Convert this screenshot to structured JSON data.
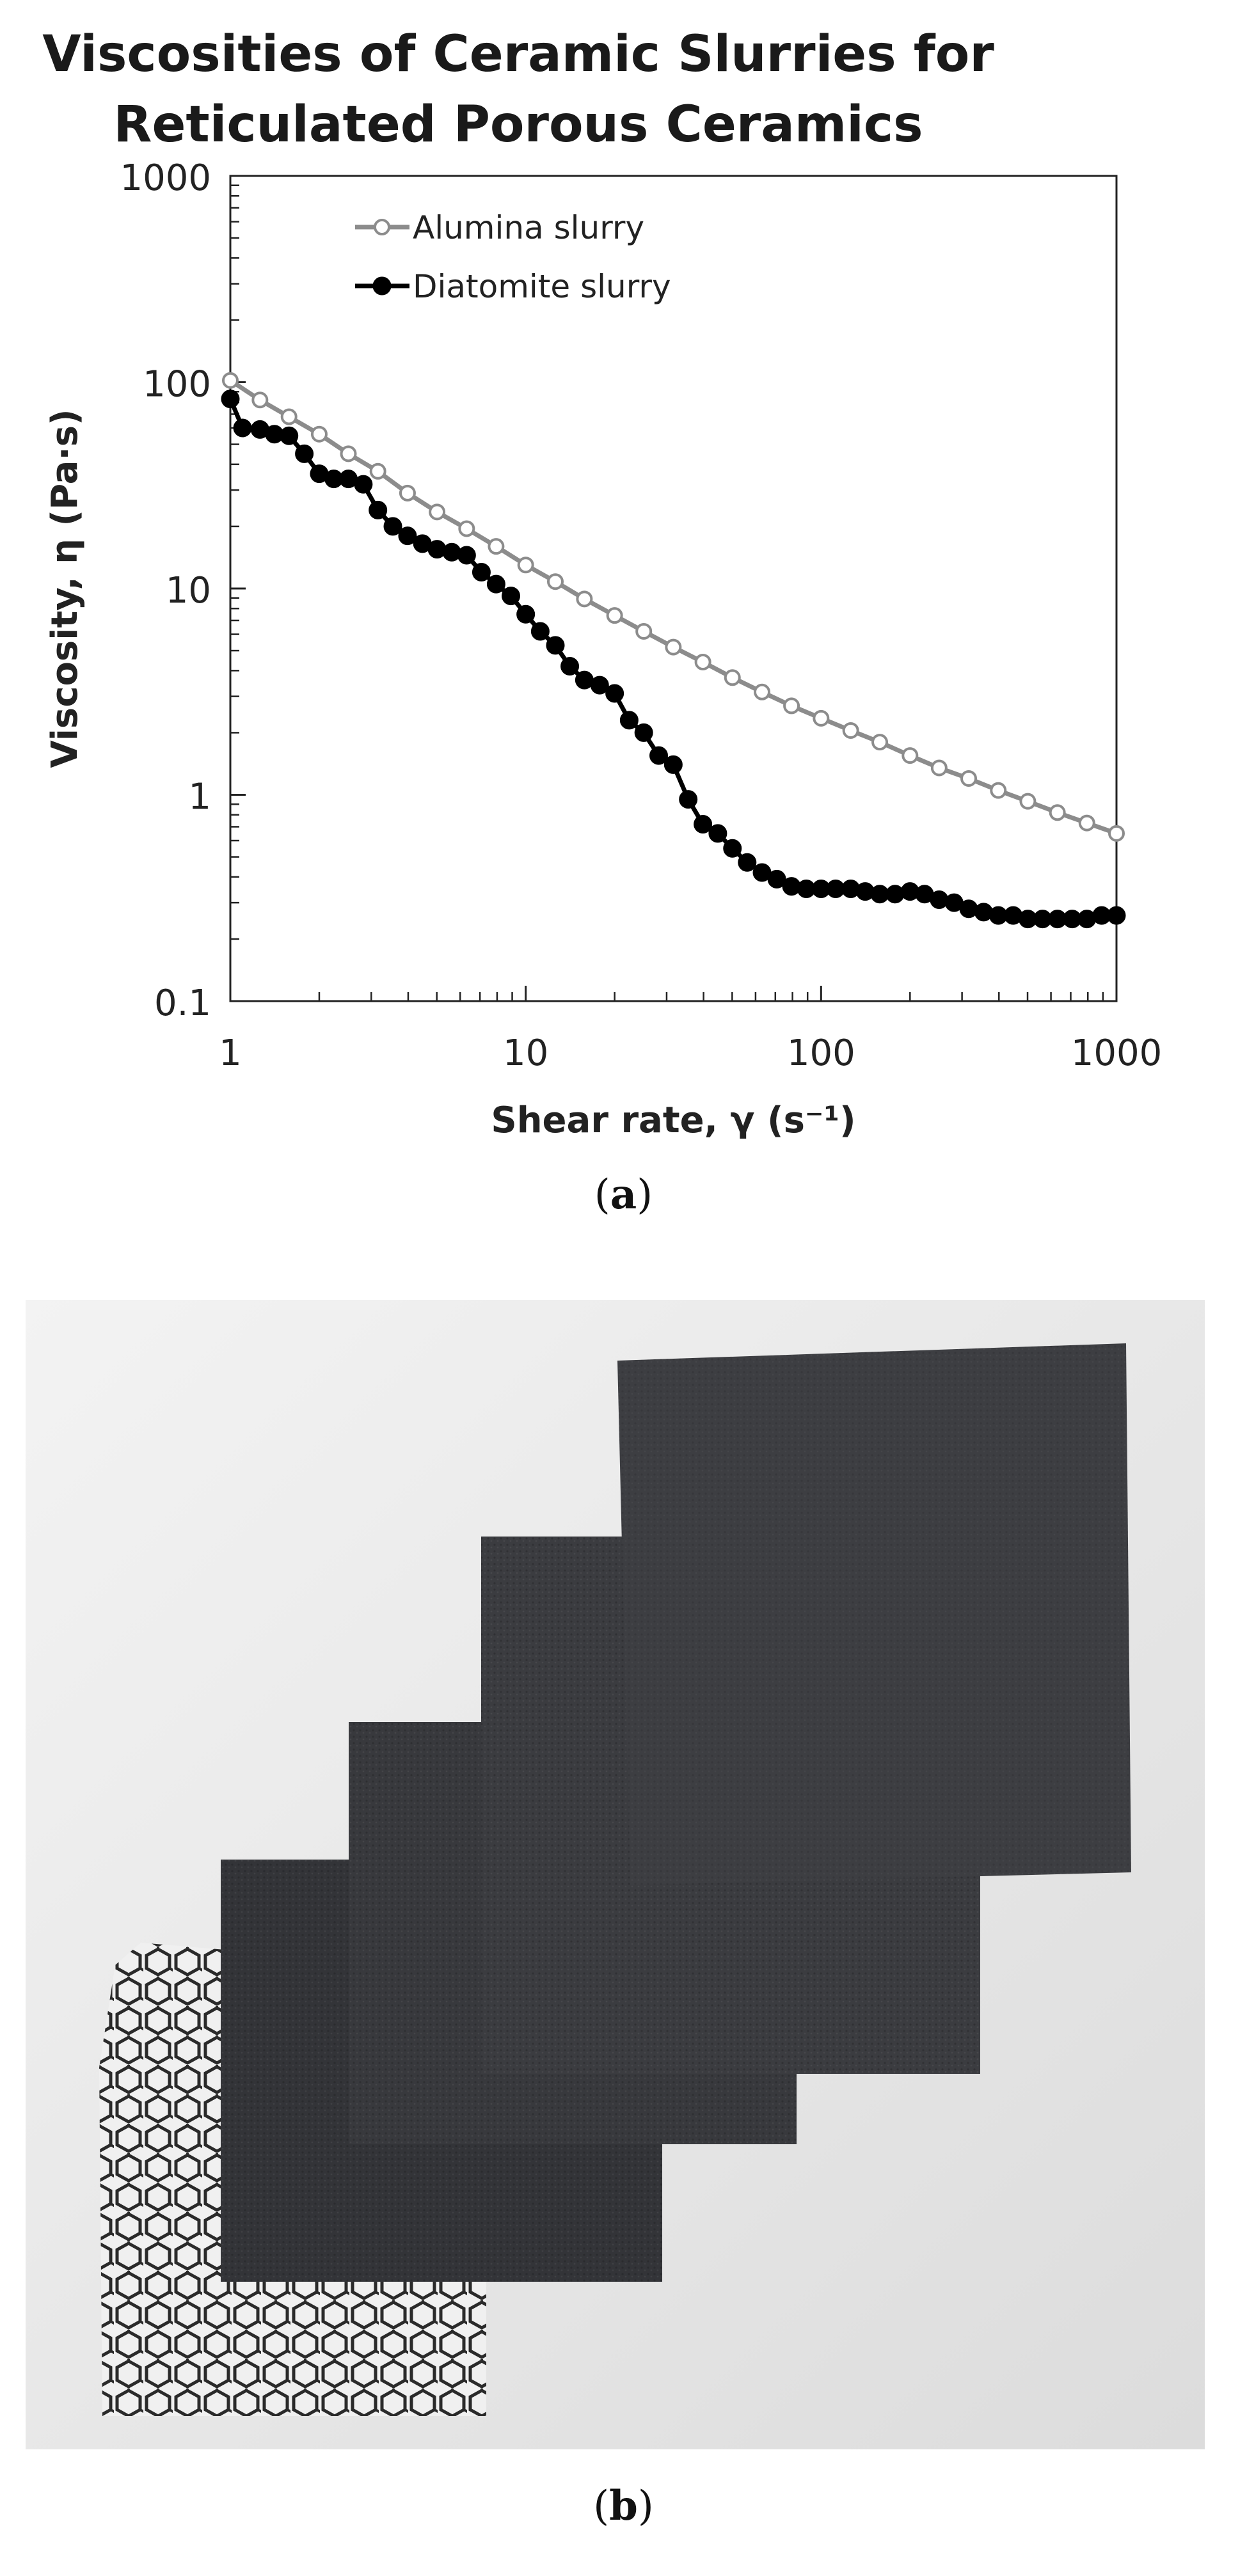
{
  "chart_data": {
    "type": "line",
    "title": [
      "Viscosities of Ceramic Slurries for",
      "Reticulated Porous Ceramics"
    ],
    "xlabel": "Shear rate, γ (s⁻¹)",
    "ylabel": "Viscosity, η (Pa·s)",
    "xscale": "log",
    "yscale": "log",
    "xlim": [
      1,
      1000
    ],
    "ylim": [
      0.1,
      1000
    ],
    "xticks": [
      "1",
      "10",
      "100",
      "1000"
    ],
    "yticks": [
      "0.1",
      "1",
      "10",
      "100",
      "1000"
    ],
    "grid": false,
    "legend": "top-left",
    "series": [
      {
        "name": "Alumina slurry",
        "color": "#8c8c8c",
        "marker": "open-circle",
        "x": [
          1,
          1.26,
          1.58,
          2,
          2.51,
          3.16,
          3.98,
          5.01,
          6.31,
          7.94,
          10,
          12.6,
          15.8,
          20,
          25.1,
          31.6,
          39.8,
          50.1,
          63.1,
          79.4,
          100,
          126,
          158,
          200,
          251,
          316,
          398,
          501,
          631,
          794,
          1000
        ],
        "y": [
          102,
          82,
          68,
          56,
          45,
          37,
          29,
          23.5,
          19.5,
          16,
          13,
          10.8,
          8.9,
          7.4,
          6.2,
          5.2,
          4.4,
          3.7,
          3.15,
          2.7,
          2.35,
          2.05,
          1.8,
          1.55,
          1.35,
          1.2,
          1.05,
          0.93,
          0.82,
          0.73,
          0.65
        ]
      },
      {
        "name": "Diatomite slurry",
        "color": "#000000",
        "marker": "filled-circle",
        "x": [
          1,
          1.1,
          1.26,
          1.41,
          1.58,
          1.78,
          2,
          2.24,
          2.51,
          2.82,
          3.16,
          3.55,
          3.98,
          4.47,
          5.01,
          5.62,
          6.31,
          7.08,
          7.94,
          8.91,
          10,
          11.2,
          12.6,
          14.1,
          15.8,
          17.8,
          20,
          22.4,
          25.1,
          28.2,
          31.6,
          35.5,
          39.8,
          44.7,
          50.1,
          56.2,
          63.1,
          70.8,
          79.4,
          89.1,
          100,
          112,
          126,
          141,
          158,
          178,
          200,
          224,
          251,
          282,
          316,
          355,
          398,
          447,
          501,
          562,
          631,
          708,
          794,
          891,
          1000
        ],
        "y": [
          83,
          60,
          59,
          56,
          55,
          45,
          36,
          34,
          34,
          32,
          24,
          20,
          18,
          16.5,
          15.5,
          15,
          14.5,
          12,
          10.5,
          9.2,
          7.5,
          6.2,
          5.3,
          4.2,
          3.6,
          3.4,
          3.1,
          2.3,
          2.0,
          1.55,
          1.4,
          0.95,
          0.72,
          0.65,
          0.55,
          0.47,
          0.42,
          0.39,
          0.36,
          0.35,
          0.35,
          0.35,
          0.35,
          0.34,
          0.33,
          0.33,
          0.34,
          0.33,
          0.31,
          0.3,
          0.28,
          0.27,
          0.26,
          0.26,
          0.25,
          0.25,
          0.25,
          0.25,
          0.25,
          0.26,
          0.26
        ]
      }
    ]
  },
  "captions": {
    "a": "a",
    "b": "b"
  },
  "photo": {
    "background": "#e8e8e8",
    "foam_colors": [
      "#2a2b2e",
      "#2f3033",
      "#343539",
      "#3a3b3f"
    ]
  }
}
